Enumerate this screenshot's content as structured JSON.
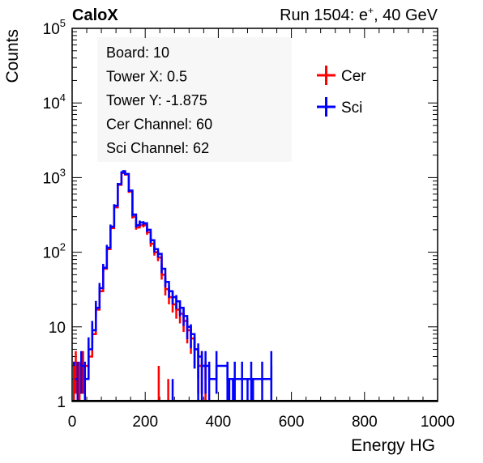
{
  "header": {
    "left_title": "CaloX",
    "right_title_prefix": "Run 1504: e",
    "right_title_sup": "+",
    "right_title_suffix": ", 40 GeV"
  },
  "info_box": {
    "lines": [
      "Board: 10",
      "Tower X: 0.5",
      "Tower Y: -1.875",
      "Cer Channel: 60",
      "Sci Channel: 62"
    ]
  },
  "chart_data": {
    "type": "line",
    "xlabel": "Energy HG",
    "ylabel": "Counts",
    "xlim": [
      0,
      1000
    ],
    "ylim": [
      1,
      100000
    ],
    "yscale": "log",
    "x_ticks": [
      "0",
      "200",
      "400",
      "600",
      "800",
      "1000"
    ],
    "y_ticks": [
      "1",
      "10",
      "10^2",
      "10^3",
      "10^4",
      "10^5"
    ],
    "legend_position": "top-right",
    "series": [
      {
        "name": "Cer",
        "color": "#ff0000",
        "points": [
          [
            5,
            2
          ],
          [
            10,
            3
          ],
          [
            20,
            2
          ],
          [
            30,
            3
          ],
          [
            45,
            4
          ],
          [
            55,
            8
          ],
          [
            65,
            17
          ],
          [
            75,
            30
          ],
          [
            85,
            60
          ],
          [
            95,
            110
          ],
          [
            105,
            210
          ],
          [
            115,
            400
          ],
          [
            125,
            800
          ],
          [
            135,
            1150
          ],
          [
            140,
            1200
          ],
          [
            145,
            1100
          ],
          [
            155,
            650
          ],
          [
            165,
            300
          ],
          [
            175,
            215
          ],
          [
            185,
            230
          ],
          [
            195,
            230
          ],
          [
            205,
            185
          ],
          [
            215,
            130
          ],
          [
            225,
            100
          ],
          [
            235,
            85
          ],
          [
            245,
            50
          ],
          [
            255,
            32
          ],
          [
            265,
            25
          ],
          [
            275,
            20
          ],
          [
            285,
            17
          ],
          [
            295,
            15
          ],
          [
            305,
            12
          ],
          [
            315,
            9
          ],
          [
            325,
            7
          ],
          [
            335,
            5
          ],
          [
            345,
            3
          ],
          [
            355,
            3
          ],
          [
            365,
            2
          ]
        ]
      },
      {
        "name": "Sci",
        "color": "#0000ff",
        "points": [
          [
            5,
            2
          ],
          [
            15,
            2
          ],
          [
            25,
            3
          ],
          [
            35,
            2
          ],
          [
            45,
            5
          ],
          [
            55,
            9
          ],
          [
            65,
            18
          ],
          [
            75,
            33
          ],
          [
            85,
            62
          ],
          [
            95,
            115
          ],
          [
            105,
            220
          ],
          [
            115,
            420
          ],
          [
            125,
            820
          ],
          [
            135,
            1180
          ],
          [
            140,
            1220
          ],
          [
            145,
            1120
          ],
          [
            155,
            670
          ],
          [
            165,
            320
          ],
          [
            175,
            230
          ],
          [
            185,
            250
          ],
          [
            195,
            245
          ],
          [
            205,
            200
          ],
          [
            215,
            145
          ],
          [
            225,
            110
          ],
          [
            235,
            95
          ],
          [
            245,
            60
          ],
          [
            255,
            40
          ],
          [
            265,
            30
          ],
          [
            275,
            25
          ],
          [
            285,
            22
          ],
          [
            295,
            18
          ],
          [
            305,
            14
          ],
          [
            315,
            10
          ],
          [
            325,
            8
          ],
          [
            335,
            5
          ],
          [
            345,
            4
          ],
          [
            355,
            3
          ],
          [
            365,
            3
          ],
          [
            375,
            2
          ],
          [
            395,
            3
          ],
          [
            425,
            2
          ],
          [
            445,
            2
          ],
          [
            465,
            2
          ],
          [
            490,
            2
          ],
          [
            520,
            2
          ],
          [
            545,
            3
          ]
        ]
      }
    ],
    "spikes": [
      {
        "series": "Cer",
        "x": [
          5,
          20,
          237,
          263
        ],
        "y": [
          3,
          3,
          3,
          2
        ]
      },
      {
        "series": "Sci",
        "x": [
          275,
          345,
          355,
          430,
          440,
          480,
          495,
          545
        ],
        "y": [
          2,
          3,
          3,
          2,
          2,
          2,
          2,
          3
        ]
      }
    ]
  }
}
